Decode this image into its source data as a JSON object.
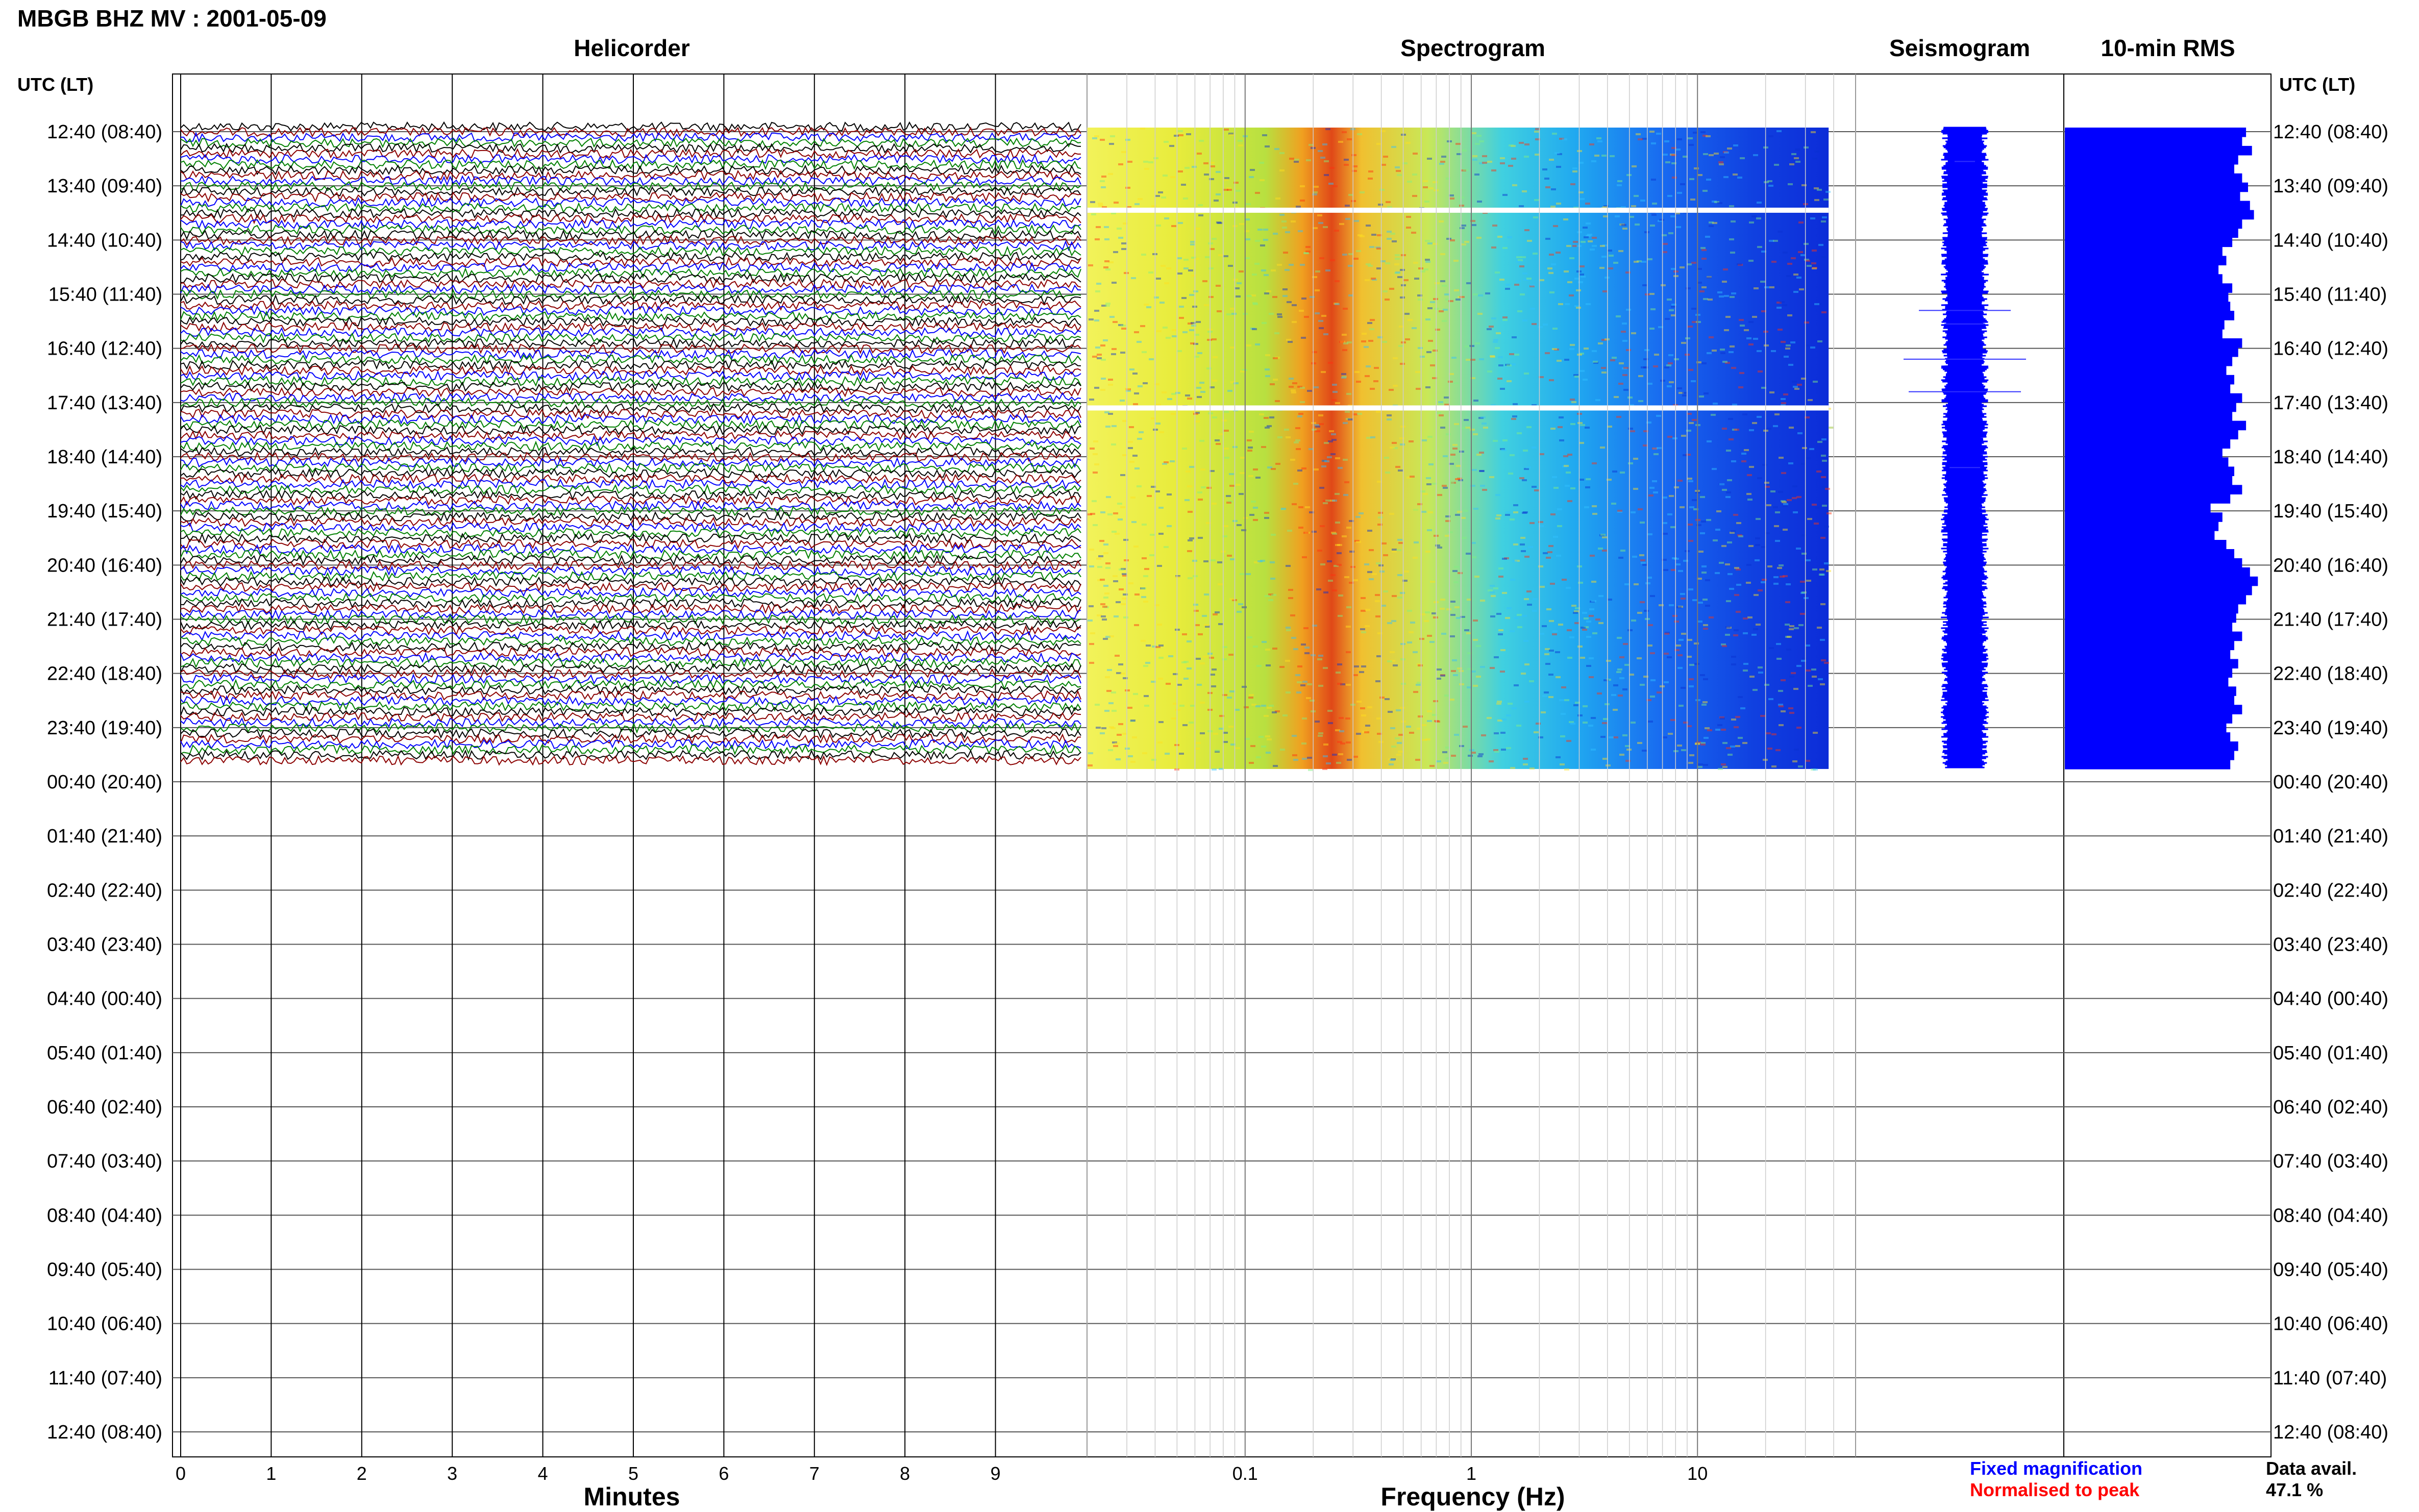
{
  "page_title": "MBGB BHZ MV : 2001-05-09",
  "panels": {
    "helicorder": "Helicorder",
    "spectrogram": "Spectrogram",
    "seismogram": "Seismogram",
    "rms": "10-min RMS"
  },
  "time_axis_label": "UTC (LT)",
  "time_labels": [
    "12:40 (08:40)",
    "13:40 (09:40)",
    "14:40 (10:40)",
    "15:40 (11:40)",
    "16:40 (12:40)",
    "17:40 (13:40)",
    "18:40 (14:40)",
    "19:40 (15:40)",
    "20:40 (16:40)",
    "21:40 (17:40)",
    "22:40 (18:40)",
    "23:40 (19:40)",
    "00:40 (20:40)",
    "01:40 (21:40)",
    "02:40 (22:40)",
    "03:40 (23:40)",
    "04:40 (00:40)",
    "05:40 (01:40)",
    "06:40 (02:40)",
    "07:40 (03:40)",
    "08:40 (04:40)",
    "09:40 (05:40)",
    "10:40 (06:40)",
    "11:40 (07:40)",
    "12:40 (08:40)"
  ],
  "legend": {
    "fixed": "Fixed magnification",
    "normalised": "Normalised to peak",
    "fixed_color": "#0000ff",
    "normalised_color": "#ff0000"
  },
  "data_availability": {
    "label": "Data avail.",
    "value": "47.1 %"
  },
  "chart_data": [
    {
      "type": "line",
      "name": "helicorder",
      "title": "Helicorder",
      "xlabel": "Minutes",
      "x_ticks": [
        0,
        1,
        2,
        3,
        4,
        5,
        6,
        7,
        8,
        9
      ],
      "xlim": [
        0,
        10
      ],
      "trace_colors": [
        "#000000",
        "#8b0000",
        "#0000ff",
        "#008000"
      ],
      "rows_with_data_hours": [
        0,
        11.5
      ],
      "total_hours": 24
    },
    {
      "type": "heatmap",
      "name": "spectrogram",
      "title": "Spectrogram",
      "xlabel": "Frequency (Hz)",
      "x_scale": "log",
      "x_tick_labels": [
        "0.1",
        "1",
        "10"
      ],
      "x_ticks": [
        0.1,
        1,
        10
      ],
      "xlim": [
        0.02,
        50
      ],
      "data_freq_range": [
        0.02,
        38
      ],
      "colormap": [
        "#ffff00",
        "#ffa500",
        "#ff0000",
        "#00ffff",
        "#0000ff"
      ],
      "gaps_hours": [
        1.45,
        5.1
      ]
    },
    {
      "type": "line",
      "name": "seismogram",
      "title": "Seismogram",
      "color": "#0000ff"
    },
    {
      "type": "bar",
      "name": "rms",
      "title": "10-min RMS",
      "orientation": "horizontal",
      "color": "#0000ff",
      "values_relative": [
        0.92,
        0.9,
        0.95,
        0.88,
        0.86,
        0.9,
        0.93,
        0.89,
        0.94,
        0.96,
        0.9,
        0.88,
        0.85,
        0.8,
        0.82,
        0.78,
        0.8,
        0.85,
        0.83,
        0.84,
        0.86,
        0.81,
        0.8,
        0.9,
        0.88,
        0.85,
        0.82,
        0.86,
        0.84,
        0.9,
        0.87,
        0.85,
        0.92,
        0.88,
        0.84,
        0.8,
        0.83,
        0.86,
        0.85,
        0.9,
        0.84,
        0.74,
        0.8,
        0.78,
        0.76,
        0.82,
        0.86,
        0.9,
        0.94,
        0.98,
        0.95,
        0.92,
        0.88,
        0.87,
        0.85,
        0.9,
        0.86,
        0.84,
        0.88,
        0.85,
        0.83,
        0.87,
        0.86,
        0.9,
        0.85,
        0.82,
        0.84,
        0.88,
        0.86,
        0.84
      ]
    }
  ]
}
